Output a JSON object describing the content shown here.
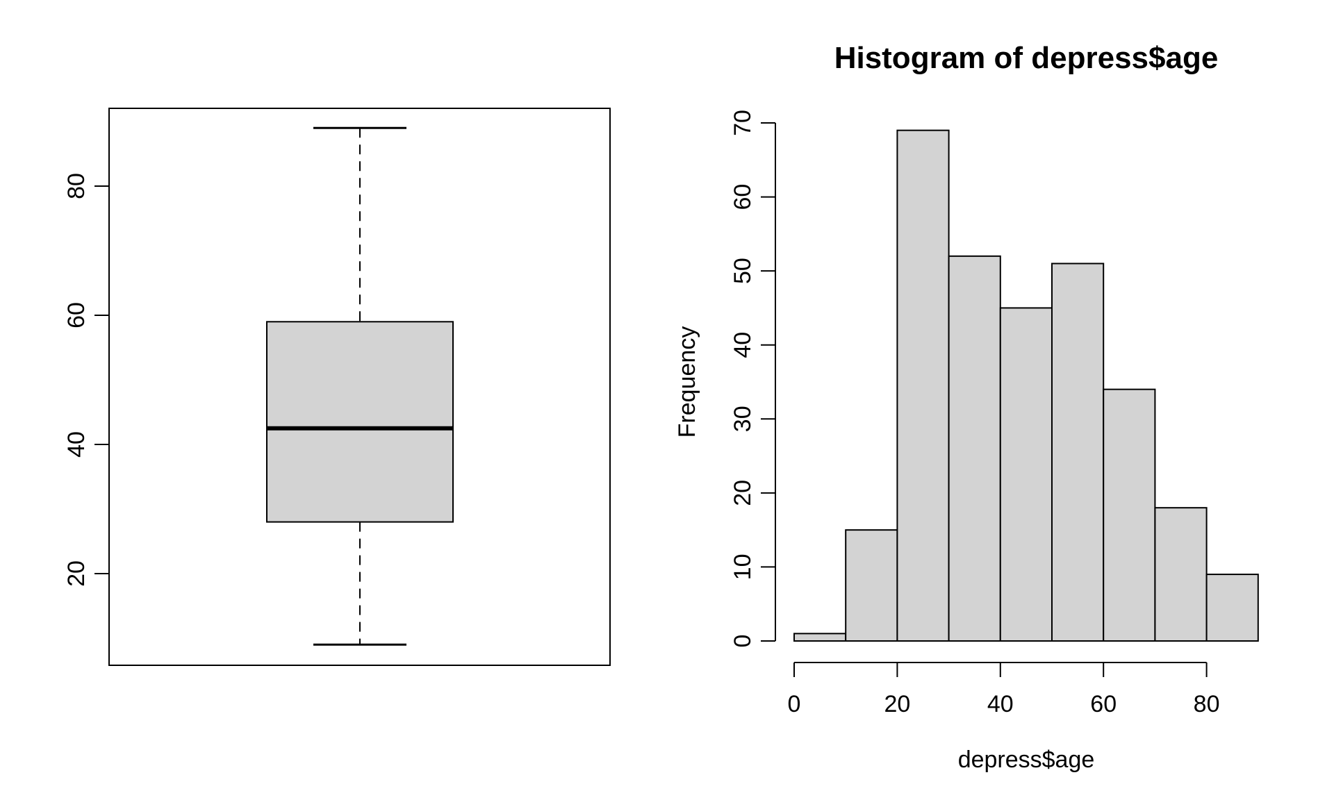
{
  "figure": {
    "background": "#ffffff",
    "stroke_color": "#000000",
    "bar_fill": "#d3d3d3"
  },
  "chart_data": [
    {
      "type": "boxplot",
      "title": "",
      "orientation": "vertical",
      "stats": {
        "min": 9,
        "q1": 28,
        "median": 42.5,
        "q3": 59,
        "max": 89
      },
      "outliers": [],
      "y_ticks": [
        20,
        40,
        60,
        80
      ],
      "ylim": [
        5.8,
        92.2
      ],
      "grid": false,
      "box_fill": "#d3d3d3",
      "whisker_style": "dashed"
    },
    {
      "type": "histogram",
      "title": "Histogram of depress$age",
      "xlabel": "depress$age",
      "ylabel": "Frequency",
      "bin_edges": [
        0,
        10,
        20,
        30,
        40,
        50,
        60,
        70,
        80,
        90
      ],
      "counts": [
        1,
        15,
        69,
        52,
        45,
        51,
        34,
        18,
        9
      ],
      "x_ticks": [
        0,
        20,
        40,
        60,
        80
      ],
      "y_ticks": [
        0,
        10,
        20,
        30,
        40,
        50,
        60,
        70
      ],
      "xlim": [
        0,
        90
      ],
      "ylim": [
        0,
        70
      ],
      "grid": false,
      "legend": null,
      "bar_fill": "#d3d3d3"
    }
  ]
}
